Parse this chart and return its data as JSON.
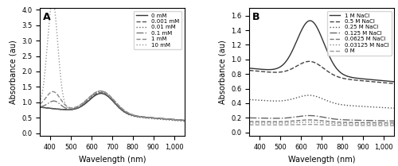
{
  "panel_A": {
    "title": "A",
    "xlabel": "Wavelength (nm)",
    "ylabel": "Absorbance (au)",
    "xlim": [
      350,
      1050
    ],
    "ylim": [
      -0.1,
      4.05
    ],
    "yticks": [
      0.0,
      0.5,
      1.0,
      1.5,
      2.0,
      2.5,
      3.0,
      3.5,
      4.0
    ],
    "xticks": [
      400,
      500,
      600,
      700,
      800,
      900,
      1000
    ],
    "legend": [
      "0 mM",
      "0.001 mM",
      "0.01 mM",
      "0.1 mM",
      "1 mM",
      "10 mM"
    ],
    "line_styles": [
      "-",
      "--",
      ":",
      "-.",
      "--",
      ":"
    ],
    "line_colors": [
      "#333333",
      "#555555",
      "#666666",
      "#777777",
      "#888888",
      "#999999"
    ],
    "line_widths": [
      1.0,
      1.0,
      1.0,
      1.0,
      1.0,
      1.0
    ]
  },
  "panel_B": {
    "title": "B",
    "xlabel": "Wavelength (nm)",
    "ylabel": "Absorbance (au)",
    "xlim": [
      350,
      1050
    ],
    "ylim": [
      -0.05,
      1.7
    ],
    "yticks": [
      0.0,
      0.2,
      0.4,
      0.6,
      0.8,
      1.0,
      1.2,
      1.4,
      1.6
    ],
    "xticks": [
      400,
      500,
      600,
      700,
      800,
      900,
      1000
    ],
    "legend": [
      "1 M NaCl",
      "0.5 M NaCl",
      "0.25 M NaCl",
      "0.125 M NaCl",
      "0.0625 M NaCl",
      "0.03125 M NaCl",
      "0 M"
    ],
    "line_styles": [
      "-",
      "--",
      ":",
      "-.",
      "--",
      ":",
      "--"
    ],
    "line_colors": [
      "#333333",
      "#444444",
      "#555555",
      "#666666",
      "#777777",
      "#888888",
      "#999999"
    ],
    "line_widths": [
      1.0,
      1.0,
      1.0,
      1.0,
      1.0,
      1.0,
      1.0
    ]
  }
}
